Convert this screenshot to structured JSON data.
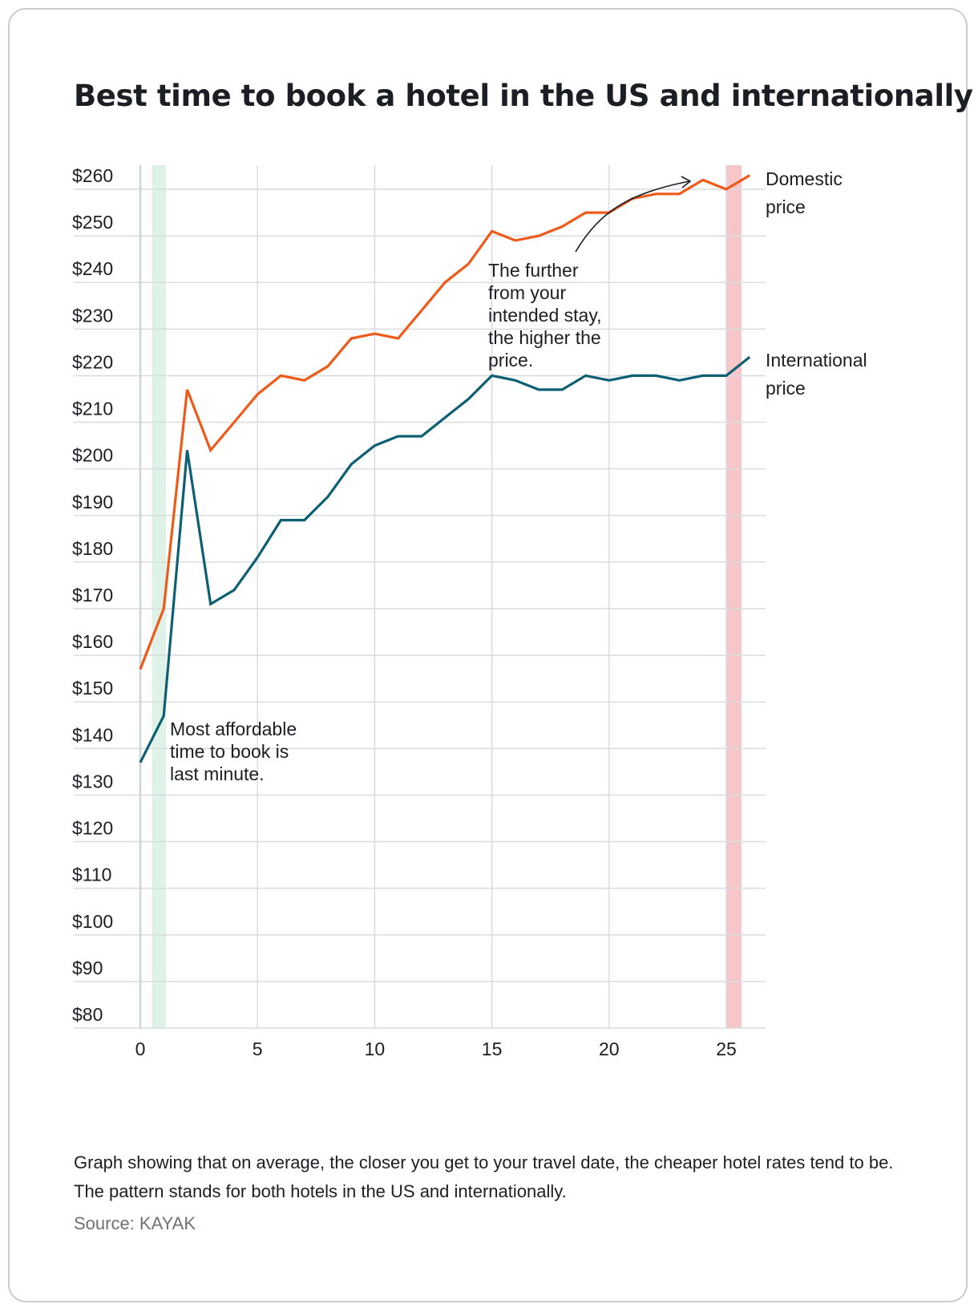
{
  "title": "Best time to book a hotel in the US and internationally",
  "caption": "Graph showing that on average, the closer you get to your travel date, the cheaper hotel rates tend to be. The pattern stands for both hotels in the US and internationally.",
  "source": "Source: KAYAK",
  "colors": {
    "domestic": "#f05a19",
    "international": "#0d6074",
    "best_band": "#dff2e8",
    "worst_band": "#f7c6c8",
    "grid": "#d9dcdf"
  },
  "chart_data": {
    "type": "line",
    "title": "Best time to book a hotel in the US and internationally",
    "xlabel": "",
    "ylabel": "",
    "xlim": [
      0,
      26
    ],
    "ylim": [
      80,
      260
    ],
    "x_ticks": [
      0,
      5,
      10,
      15,
      20,
      25
    ],
    "y_ticks": [
      80,
      90,
      100,
      110,
      120,
      130,
      140,
      150,
      160,
      170,
      180,
      190,
      200,
      210,
      220,
      230,
      240,
      250,
      260
    ],
    "y_tick_labels": [
      "$80",
      "$90",
      "$100",
      "$110",
      "$120",
      "$130",
      "$140",
      "$150",
      "$160",
      "$170",
      "$180",
      "$190",
      "$200",
      "$210",
      "$220",
      "$230",
      "$240",
      "$250",
      "$260"
    ],
    "grid": true,
    "x": [
      0,
      1,
      2,
      3,
      4,
      5,
      6,
      7,
      8,
      9,
      10,
      11,
      12,
      13,
      14,
      15,
      16,
      17,
      18,
      19,
      20,
      21,
      22,
      23,
      24,
      25,
      26
    ],
    "series": [
      {
        "name": "Domestic price",
        "label_lines": [
          "Domestic",
          "price"
        ],
        "color": "#f05a19",
        "values": [
          157,
          170,
          217,
          204,
          210,
          216,
          220,
          219,
          222,
          228,
          229,
          228,
          234,
          240,
          244,
          251,
          249,
          250,
          252,
          255,
          255,
          258,
          259,
          259,
          262,
          260,
          263
        ]
      },
      {
        "name": "International price",
        "label_lines": [
          "International",
          "price"
        ],
        "color": "#0d6074",
        "values": [
          137,
          147,
          204,
          171,
          174,
          181,
          189,
          189,
          194,
          201,
          205,
          207,
          207,
          211,
          215,
          220,
          219,
          217,
          217,
          220,
          219,
          220,
          220,
          219,
          220,
          220,
          224
        ]
      }
    ],
    "bands": [
      {
        "name": "best-time-band",
        "x_range": [
          0.5,
          1.1
        ],
        "color": "#dff2e8"
      },
      {
        "name": "worst-time-band",
        "x_range": [
          25,
          25.65
        ],
        "color": "#f7c6c8"
      }
    ],
    "annotations": [
      {
        "name": "annotation-last-minute",
        "lines": [
          "Most affordable",
          "time to book is",
          "last minute."
        ]
      },
      {
        "name": "annotation-further-higher",
        "lines": [
          "The further",
          "from your",
          "intended stay,",
          "the higher the",
          "price."
        ]
      }
    ]
  }
}
